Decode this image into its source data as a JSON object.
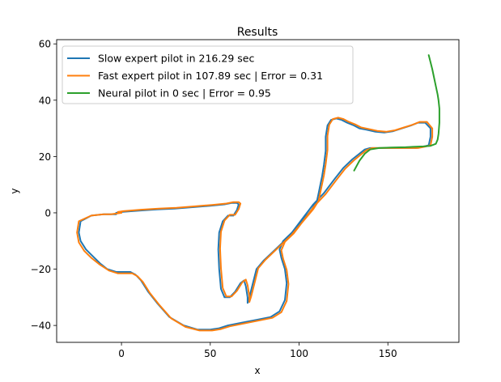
{
  "chart_data": {
    "type": "line",
    "title": "Results",
    "xlabel": "x",
    "ylabel": "y",
    "xlim": [
      -36.5,
      190
    ],
    "ylim": [
      -46,
      61.5
    ],
    "xticks": [
      0,
      50,
      100,
      150
    ],
    "yticks": [
      -40,
      -20,
      0,
      20,
      40,
      60
    ],
    "xtick_labels": [
      "0",
      "50",
      "100",
      "150"
    ],
    "ytick_labels": [
      "−40",
      "−20",
      "0",
      "20",
      "40",
      "60"
    ],
    "grid": false,
    "legend_position": "upper-left",
    "series": [
      {
        "name": "Slow expert pilot in 216.29 sec",
        "color": "#1f77b4",
        "x": [
          -3,
          -6,
          -10,
          -17,
          -23,
          -24,
          -23,
          -20,
          -16,
          -12,
          -8,
          -3,
          0,
          5,
          8,
          11,
          15,
          20,
          27,
          35,
          43,
          50,
          55,
          60,
          68,
          76,
          84,
          89,
          92,
          93,
          92,
          90,
          89,
          91,
          96,
          102,
          108,
          114,
          120,
          125,
          130,
          134,
          137,
          140,
          145,
          152,
          160,
          166,
          170,
          173,
          174,
          174,
          171,
          167,
          163,
          158,
          153,
          148,
          143,
          138,
          134,
          131,
          127,
          124,
          121,
          118,
          116,
          115,
          115,
          114,
          113,
          112,
          111,
          110,
          107,
          103,
          99,
          95,
          90,
          85,
          80,
          76,
          74,
          72,
          71,
          71,
          70,
          69,
          67,
          64,
          61,
          58,
          56,
          55,
          54.5,
          55,
          57,
          60,
          63,
          65,
          66,
          65,
          62,
          58,
          50,
          40,
          30,
          20,
          10,
          0,
          -3
        ],
        "y": [
          -0.5,
          -0.5,
          -0.5,
          -1,
          -3,
          -7,
          -10,
          -13,
          -15.5,
          -18,
          -20,
          -21,
          -21,
          -21,
          -22,
          -24,
          -28,
          -32,
          -37,
          -40,
          -41.5,
          -41.5,
          -41,
          -40,
          -39,
          -38,
          -37,
          -35,
          -31,
          -25,
          -20,
          -16,
          -13,
          -10,
          -7,
          -2,
          3,
          7,
          12,
          16,
          19,
          21,
          22.5,
          23,
          23,
          23,
          23,
          23,
          23.5,
          24,
          27,
          30,
          32,
          32,
          31,
          30,
          29,
          28.5,
          28.8,
          29.5,
          30,
          31,
          32,
          33,
          33.5,
          33,
          31,
          27,
          22,
          17,
          13,
          10,
          7,
          4,
          1,
          -2,
          -5,
          -8,
          -11,
          -14,
          -17,
          -20,
          -25,
          -30,
          -32,
          -30,
          -26,
          -24,
          -25,
          -28,
          -30,
          -30,
          -27,
          -20,
          -13,
          -7,
          -3,
          -1,
          -1,
          1,
          3,
          3.5,
          3.5,
          3,
          2.5,
          2,
          1.5,
          1.2,
          0.8,
          0.3,
          0
        ]
      },
      {
        "name": "Fast expert pilot in 107.89 sec | Error = 0.31",
        "color": "#ff7f0e",
        "x": [
          0,
          -6,
          -10,
          -17,
          -24,
          -25,
          -24,
          -21,
          -17,
          -12,
          -7,
          -2,
          1,
          6,
          9,
          12,
          16,
          21,
          28,
          36,
          44,
          51,
          56,
          61,
          69,
          77,
          85,
          90,
          93,
          94,
          93,
          91,
          90,
          92,
          97,
          103,
          109,
          115,
          121,
          126,
          131,
          135,
          138,
          141,
          146,
          153,
          161,
          167,
          171,
          174,
          175,
          175,
          172,
          168,
          164,
          159,
          154,
          149,
          144,
          139,
          135,
          132,
          128,
          125,
          122,
          119,
          117,
          116,
          116,
          115,
          114,
          113,
          112,
          111,
          108,
          104,
          100,
          96,
          91,
          86,
          81,
          77,
          75,
          73,
          72,
          72,
          71,
          70,
          68,
          65,
          62,
          59,
          57,
          56,
          55.5,
          56,
          58,
          61,
          64,
          66,
          67,
          66,
          63,
          59,
          51,
          41,
          31,
          21,
          11,
          1,
          -2
        ],
        "y": [
          0,
          -0.5,
          -0.5,
          -1,
          -3,
          -7,
          -10.5,
          -13.5,
          -16,
          -18.5,
          -20.5,
          -21.5,
          -21.5,
          -21.5,
          -22.5,
          -24.5,
          -28.5,
          -32.5,
          -37.5,
          -40.5,
          -41.8,
          -41.8,
          -41.3,
          -40.3,
          -39.3,
          -38.3,
          -37.3,
          -35.3,
          -31.3,
          -25.3,
          -20.3,
          -16.3,
          -13.3,
          -10.3,
          -7.3,
          -2.3,
          2.7,
          6.7,
          11.7,
          15.7,
          18.7,
          20.8,
          22.3,
          23,
          23,
          23,
          23,
          23,
          23.5,
          24,
          27,
          30,
          32.3,
          32.3,
          31.3,
          30.3,
          29.3,
          28.8,
          29.1,
          29.8,
          30.3,
          31.3,
          32.3,
          33.3,
          33.8,
          33.3,
          31.3,
          27.3,
          22.3,
          17.3,
          13.3,
          10.3,
          7.3,
          4.3,
          1.3,
          -1.7,
          -4.7,
          -7.7,
          -10.7,
          -13.7,
          -16.7,
          -19.7,
          -24.7,
          -29.7,
          -31.7,
          -29.7,
          -25.7,
          -23.7,
          -24.7,
          -27.7,
          -29.7,
          -29.7,
          -26.7,
          -19.7,
          -12.7,
          -6.7,
          -2.7,
          -0.7,
          -0.7,
          1.3,
          3.3,
          3.8,
          3.8,
          3.3,
          2.8,
          2.3,
          1.8,
          1.5,
          1.1,
          0.6,
          0.3
        ]
      },
      {
        "name": "Neural pilot in 0 sec | Error = 0.95",
        "color": "#2ca02c",
        "x": [
          131,
          134,
          137,
          140,
          145,
          152,
          160,
          166,
          170,
          174,
          177,
          178,
          178.5,
          179,
          179,
          178.5,
          178,
          177,
          176,
          175,
          174,
          173
        ],
        "y": [
          15,
          18.5,
          21,
          22.5,
          23,
          23.2,
          23.3,
          23.5,
          23.6,
          23.8,
          24.5,
          26,
          28,
          32,
          37,
          40,
          42,
          45,
          48,
          51,
          53.5,
          56
        ]
      }
    ]
  }
}
